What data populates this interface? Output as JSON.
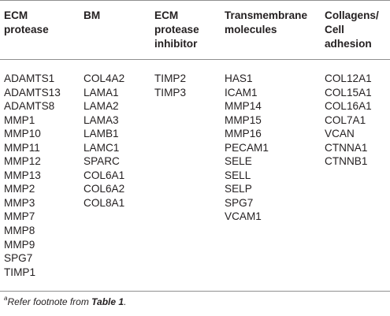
{
  "table": {
    "columns": [
      {
        "header": "ECM\nprotease",
        "items": [
          "ADAMTS1",
          "ADAMTS13",
          "ADAMTS8",
          "MMP1",
          "MMP10",
          "MMP11",
          "MMP12",
          "MMP13",
          "MMP2",
          "MMP3",
          "MMP7",
          "MMP8",
          "MMP9",
          "SPG7",
          "TIMP1"
        ]
      },
      {
        "header": "BM",
        "items": [
          "COL4A2",
          "LAMA1",
          "LAMA2",
          "LAMA3",
          "LAMB1",
          "LAMC1",
          "SPARC",
          "COL6A1",
          "COL6A2",
          "COL8A1"
        ]
      },
      {
        "header": "ECM\nprotease\ninhibitor",
        "items": [
          "TIMP2",
          "TIMP3"
        ]
      },
      {
        "header": "Transmembrane\nmolecules",
        "items": [
          "HAS1",
          "ICAM1",
          "MMP14",
          "MMP15",
          "MMP16",
          "PECAM1",
          "SELE",
          "SELL",
          "SELP",
          "SPG7",
          "VCAM1"
        ]
      },
      {
        "header": "Collagens/\nCell\nadhesion",
        "items": [
          "COL12A1",
          "COL15A1",
          "COL16A1",
          "COL7A1",
          "VCAN",
          "CTNNA1",
          "CTNNB1"
        ]
      }
    ]
  },
  "footnote": {
    "marker": "a",
    "text": "Refer footnote from ",
    "ref": "Table 1",
    "end": "."
  }
}
